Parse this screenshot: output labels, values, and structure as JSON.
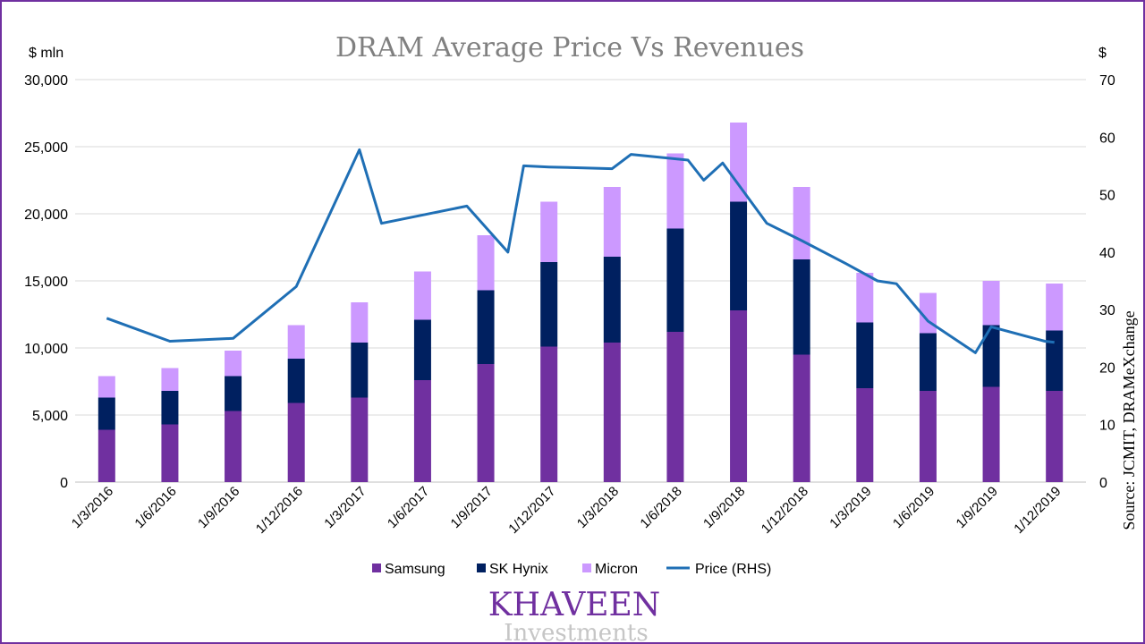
{
  "chart_data": {
    "type": "bar",
    "stacked": true,
    "title": "DRAM Average Price Vs Revenues",
    "ylabel_left": "$ mln",
    "ylabel_right": "$",
    "ylim_left": [
      0,
      30000
    ],
    "ylim_right": [
      0,
      70
    ],
    "yticks_left": [
      "0",
      "5,000",
      "10,000",
      "15,000",
      "20,000",
      "25,000",
      "30,000"
    ],
    "yticks_right": [
      "0",
      "10",
      "20",
      "30",
      "40",
      "50",
      "60",
      "70"
    ],
    "categories": [
      "1/3/2016",
      "1/6/2016",
      "1/9/2016",
      "1/12/2016",
      "1/3/2017",
      "1/6/2017",
      "1/9/2017",
      "1/12/2017",
      "1/3/2018",
      "1/6/2018",
      "1/9/2018",
      "1/12/2018",
      "1/3/2019",
      "1/6/2019",
      "1/9/2019",
      "1/12/2019"
    ],
    "series": [
      {
        "name": "Samsung",
        "color": "#7030a0",
        "values": [
          3900,
          4300,
          5300,
          5900,
          6300,
          7600,
          8800,
          10100,
          10400,
          11200,
          12800,
          9500,
          7000,
          6800,
          7100,
          6800
        ]
      },
      {
        "name": "SK Hynix",
        "color": "#002060",
        "values": [
          2400,
          2500,
          2600,
          3300,
          4100,
          4500,
          5500,
          6300,
          6400,
          7700,
          8100,
          7100,
          4900,
          4300,
          4600,
          4500
        ]
      },
      {
        "name": "Micron",
        "color": "#cc99ff",
        "values": [
          1600,
          1700,
          1900,
          2500,
          3000,
          3600,
          4100,
          4500,
          5200,
          5600,
          5900,
          5400,
          3700,
          3000,
          3300,
          3500
        ]
      }
    ],
    "line_series": {
      "name": "Price (RHS)",
      "color": "#1f6fb5",
      "axis": "right",
      "x_positions": [
        0,
        1,
        2,
        3,
        4,
        4.35,
        5.7,
        6.35,
        6.6,
        7,
        8,
        8.3,
        9.2,
        9.45,
        9.75,
        10.45,
        11,
        11.7,
        12.2,
        12.5,
        13,
        13.75,
        14,
        14.85,
        15
      ],
      "values": [
        28.5,
        24.5,
        25,
        34,
        57.8,
        45,
        48,
        40,
        55,
        54.8,
        54.5,
        57,
        56,
        52.5,
        55.5,
        45,
        42,
        38,
        35,
        34.5,
        28,
        22.5,
        27,
        24.5,
        24.3
      ]
    },
    "legend": [
      "Samsung",
      "SK Hynix",
      "Micron",
      "Price (RHS)"
    ],
    "legend_position": "bottom",
    "grid": true,
    "source": "Source: JCMIT, DRAMeXchange"
  },
  "logo": {
    "name": "KHAVEEN",
    "sub": "Investments"
  }
}
